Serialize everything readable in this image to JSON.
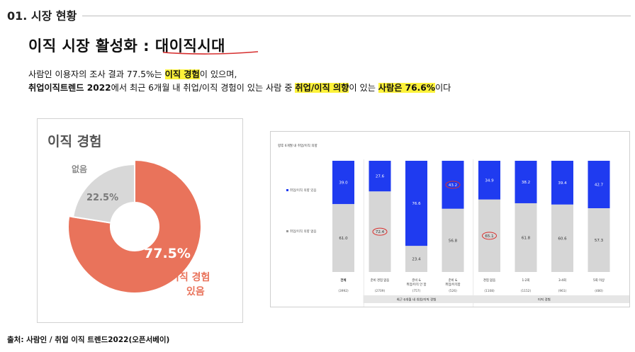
{
  "section": {
    "title": "01. 시장 현황"
  },
  "headline": {
    "prefix": "이직 시장 활성화 : ",
    "highlight": "대이직시대"
  },
  "body": {
    "line1_a": "사람인 이용자의 조사 결과 77.5%는 ",
    "line1_mark": "이직 경험",
    "line1_b": "이 있으며,",
    "line2_a": "취업이직트렌드 2022",
    "line2_b": "에서 최근 6개월 내 취업/이직 경험이 있는 사람 중 ",
    "line2_mark1": "취업/이직 의향",
    "line2_c": "이 있는 ",
    "line2_mark2": "사람은 76.6%",
    "line2_d": "이다"
  },
  "colors": {
    "donut_yes": "#e9735b",
    "donut_no": "#d8d8d8",
    "bar_blue": "#1f3bf0",
    "bar_gray": "#d6d6d6",
    "highlight": "#fdf23a",
    "underline": "#d62e2e",
    "circle": "#d9312e"
  },
  "chart_data": [
    {
      "type": "pie",
      "title": "이직 경험",
      "categories": [
        "있음",
        "없음"
      ],
      "category_labels": [
        "이직 경험 있음",
        "없음"
      ],
      "value_labels": [
        "77.5%",
        "22.5%"
      ],
      "values": [
        77.5,
        22.5
      ],
      "donut": true
    },
    {
      "type": "bar",
      "stacked": true,
      "title": "향후 6개월 내 취업/이직 의향",
      "categories": [
        "전체",
        "준비 경험 없음",
        "준비 & 취업/이직 안 함",
        "준비 & 취업/이직함",
        "경험 없음",
        "1-2회",
        "3-4회",
        "5회 이상"
      ],
      "counts": [
        "(3992)",
        "(2709)",
        "(757)",
        "(526)",
        "(1108)",
        "(1152)",
        "(961)",
        "(480)"
      ],
      "groups": [
        {
          "label": "최근 6개월 내 취업/이직 경험",
          "categories": [
            1,
            2,
            3
          ]
        },
        {
          "label": "이직 경험",
          "categories": [
            4,
            5,
            6,
            7
          ]
        }
      ],
      "series": [
        {
          "name": "취업/이직 의향 있음",
          "values": [
            39.0,
            27.6,
            76.6,
            43.2,
            34.9,
            38.2,
            39.4,
            42.7
          ]
        },
        {
          "name": "취업/이직 의향 없음",
          "values": [
            61.0,
            72.4,
            23.4,
            56.8,
            65.1,
            61.8,
            60.6,
            57.3
          ]
        }
      ],
      "value_labels": {
        "yes": [
          "39.0",
          "27.6",
          "76.6",
          "43.2",
          "34.9",
          "38.2",
          "39.4",
          "42.7"
        ],
        "no": [
          "61.0",
          "72.4",
          "23.4",
          "56.8",
          "65.1",
          "61.8",
          "60.6",
          "57.3"
        ]
      },
      "highlighted_values": [
        "43.2",
        "72.4",
        "65.1"
      ],
      "ylim": [
        0,
        100
      ],
      "legend_position": "left"
    }
  ],
  "source": "출처: 사람인 / 취업 이직 트렌드2022(오픈서베이)"
}
